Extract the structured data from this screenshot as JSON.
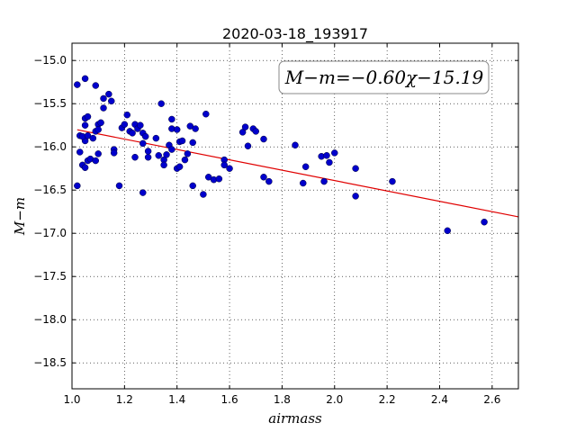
{
  "chart_data": {
    "type": "scatter",
    "title": "2020-03-18_193917",
    "xlabel": "airmass",
    "ylabel": "M−m",
    "xlim": [
      1.0,
      2.7
    ],
    "ylim": [
      -18.8,
      -14.8
    ],
    "xticks": [
      "1.0",
      "1.2",
      "1.4",
      "1.6",
      "1.8",
      "2.0",
      "2.2",
      "2.4",
      "2.6"
    ],
    "xtick_values": [
      1.0,
      1.2,
      1.4,
      1.6,
      1.8,
      2.0,
      2.2,
      2.4,
      2.6
    ],
    "yticks": [
      "−15.0",
      "−15.5",
      "−16.0",
      "−16.5",
      "−17.0",
      "−17.5",
      "−18.0",
      "−18.5"
    ],
    "ytick_values": [
      -15.0,
      -15.5,
      -16.0,
      -16.5,
      -17.0,
      -17.5,
      -18.0,
      -18.5
    ],
    "grid": true,
    "annotation": "M−m=−0.60χ−15.19",
    "fit": {
      "slope": -0.6,
      "intercept": -15.19,
      "color": "#e00000"
    },
    "point_color": "#0000cc",
    "points": [
      [
        1.02,
        -15.28
      ],
      [
        1.05,
        -15.21
      ],
      [
        1.09,
        -15.29
      ],
      [
        1.12,
        -15.44
      ],
      [
        1.14,
        -15.39
      ],
      [
        1.05,
        -15.67
      ],
      [
        1.06,
        -15.65
      ],
      [
        1.03,
        -15.87
      ],
      [
        1.05,
        -15.93
      ],
      [
        1.04,
        -15.88
      ],
      [
        1.06,
        -15.87
      ],
      [
        1.09,
        -15.82
      ],
      [
        1.08,
        -15.9
      ],
      [
        1.1,
        -15.74
      ],
      [
        1.11,
        -15.72
      ],
      [
        1.12,
        -15.55
      ],
      [
        1.15,
        -15.47
      ],
      [
        1.1,
        -15.8
      ],
      [
        1.05,
        -15.75
      ],
      [
        1.03,
        -16.06
      ],
      [
        1.04,
        -16.21
      ],
      [
        1.05,
        -16.24
      ],
      [
        1.06,
        -16.16
      ],
      [
        1.07,
        -16.14
      ],
      [
        1.09,
        -16.16
      ],
      [
        1.1,
        -16.08
      ],
      [
        1.02,
        -16.45
      ],
      [
        1.16,
        -16.03
      ],
      [
        1.16,
        -16.07
      ],
      [
        1.18,
        -16.45
      ],
      [
        1.19,
        -15.78
      ],
      [
        1.2,
        -15.74
      ],
      [
        1.21,
        -15.63
      ],
      [
        1.22,
        -15.82
      ],
      [
        1.23,
        -15.84
      ],
      [
        1.24,
        -15.74
      ],
      [
        1.25,
        -15.79
      ],
      [
        1.26,
        -15.75
      ],
      [
        1.27,
        -15.84
      ],
      [
        1.28,
        -15.88
      ],
      [
        1.24,
        -16.12
      ],
      [
        1.27,
        -15.96
      ],
      [
        1.29,
        -16.05
      ],
      [
        1.29,
        -16.12
      ],
      [
        1.27,
        -16.53
      ],
      [
        1.32,
        -15.9
      ],
      [
        1.33,
        -16.1
      ],
      [
        1.34,
        -15.5
      ],
      [
        1.35,
        -16.15
      ],
      [
        1.35,
        -16.21
      ],
      [
        1.36,
        -16.09
      ],
      [
        1.37,
        -15.98
      ],
      [
        1.38,
        -15.68
      ],
      [
        1.38,
        -15.79
      ],
      [
        1.38,
        -16.03
      ],
      [
        1.4,
        -16.25
      ],
      [
        1.41,
        -16.23
      ],
      [
        1.4,
        -15.8
      ],
      [
        1.41,
        -15.94
      ],
      [
        1.42,
        -15.93
      ],
      [
        1.43,
        -16.15
      ],
      [
        1.44,
        -16.08
      ],
      [
        1.45,
        -15.76
      ],
      [
        1.46,
        -15.95
      ],
      [
        1.46,
        -16.45
      ],
      [
        1.47,
        -15.79
      ],
      [
        1.5,
        -16.55
      ],
      [
        1.51,
        -15.62
      ],
      [
        1.52,
        -16.35
      ],
      [
        1.54,
        -16.38
      ],
      [
        1.56,
        -16.37
      ],
      [
        1.58,
        -16.15
      ],
      [
        1.58,
        -16.21
      ],
      [
        1.6,
        -16.25
      ],
      [
        1.65,
        -15.83
      ],
      [
        1.66,
        -15.77
      ],
      [
        1.67,
        -15.99
      ],
      [
        1.69,
        -15.79
      ],
      [
        1.7,
        -15.82
      ],
      [
        1.73,
        -15.91
      ],
      [
        1.73,
        -16.35
      ],
      [
        1.75,
        -16.4
      ],
      [
        1.85,
        -15.98
      ],
      [
        1.88,
        -16.42
      ],
      [
        1.89,
        -16.23
      ],
      [
        1.95,
        -16.11
      ],
      [
        1.96,
        -16.4
      ],
      [
        1.97,
        -16.1
      ],
      [
        1.98,
        -16.18
      ],
      [
        2.0,
        -16.07
      ],
      [
        2.08,
        -16.25
      ],
      [
        2.08,
        -16.57
      ],
      [
        2.22,
        -16.4
      ],
      [
        2.43,
        -16.97
      ],
      [
        2.57,
        -16.87
      ]
    ]
  }
}
